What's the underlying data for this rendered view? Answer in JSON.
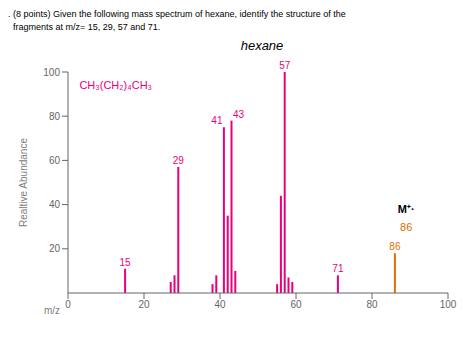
{
  "chart_data": {
    "type": "bar",
    "title": "hexane",
    "subtitle": [
      ". (8 points) Given the following mass spectrum of hexane, identify the structure of the",
      "  fragments at m/z= 15, 29, 57 and 71."
    ],
    "xlabel": "m/z",
    "ylabel": "Realtive Abundance",
    "x": [
      15,
      27,
      28,
      29,
      38,
      39,
      41,
      42,
      43,
      44,
      55,
      56,
      57,
      58,
      59,
      71,
      86
    ],
    "values": [
      11,
      5,
      8,
      57,
      4,
      8,
      75,
      35,
      78,
      10,
      4,
      44,
      100,
      7,
      5,
      8,
      18
    ],
    "colors": [
      "#e8007a",
      "#e8007a",
      "#e8007a",
      "#e8007a",
      "#e8007a",
      "#e8007a",
      "#e8007a",
      "#e8007a",
      "#e8007a",
      "#e8007a",
      "#e8007a",
      "#e8007a",
      "#e8007a",
      "#e8007a",
      "#e8007a",
      "#e8007a",
      "#e07000"
    ],
    "labels": [
      "15",
      null,
      null,
      "29",
      null,
      null,
      "41",
      null,
      "43",
      null,
      null,
      null,
      "57",
      null,
      null,
      "71",
      "86"
    ],
    "xlim": [
      0,
      100
    ],
    "ylim": [
      0,
      100
    ],
    "xticks": [
      0,
      20,
      40,
      60,
      80,
      100
    ],
    "yticks": [
      20,
      40,
      60,
      80,
      100
    ],
    "grid": false,
    "annotations": [
      {
        "text": "M⁺·",
        "x": 89,
        "y": 36,
        "color": "#000000"
      },
      {
        "text": "86",
        "x": 89,
        "y": 28,
        "color": "#e07000"
      },
      {
        "text": "CH₃(CH₂)₄CH₃",
        "x": 3,
        "y": 96,
        "color": "#e8007a"
      }
    ]
  }
}
